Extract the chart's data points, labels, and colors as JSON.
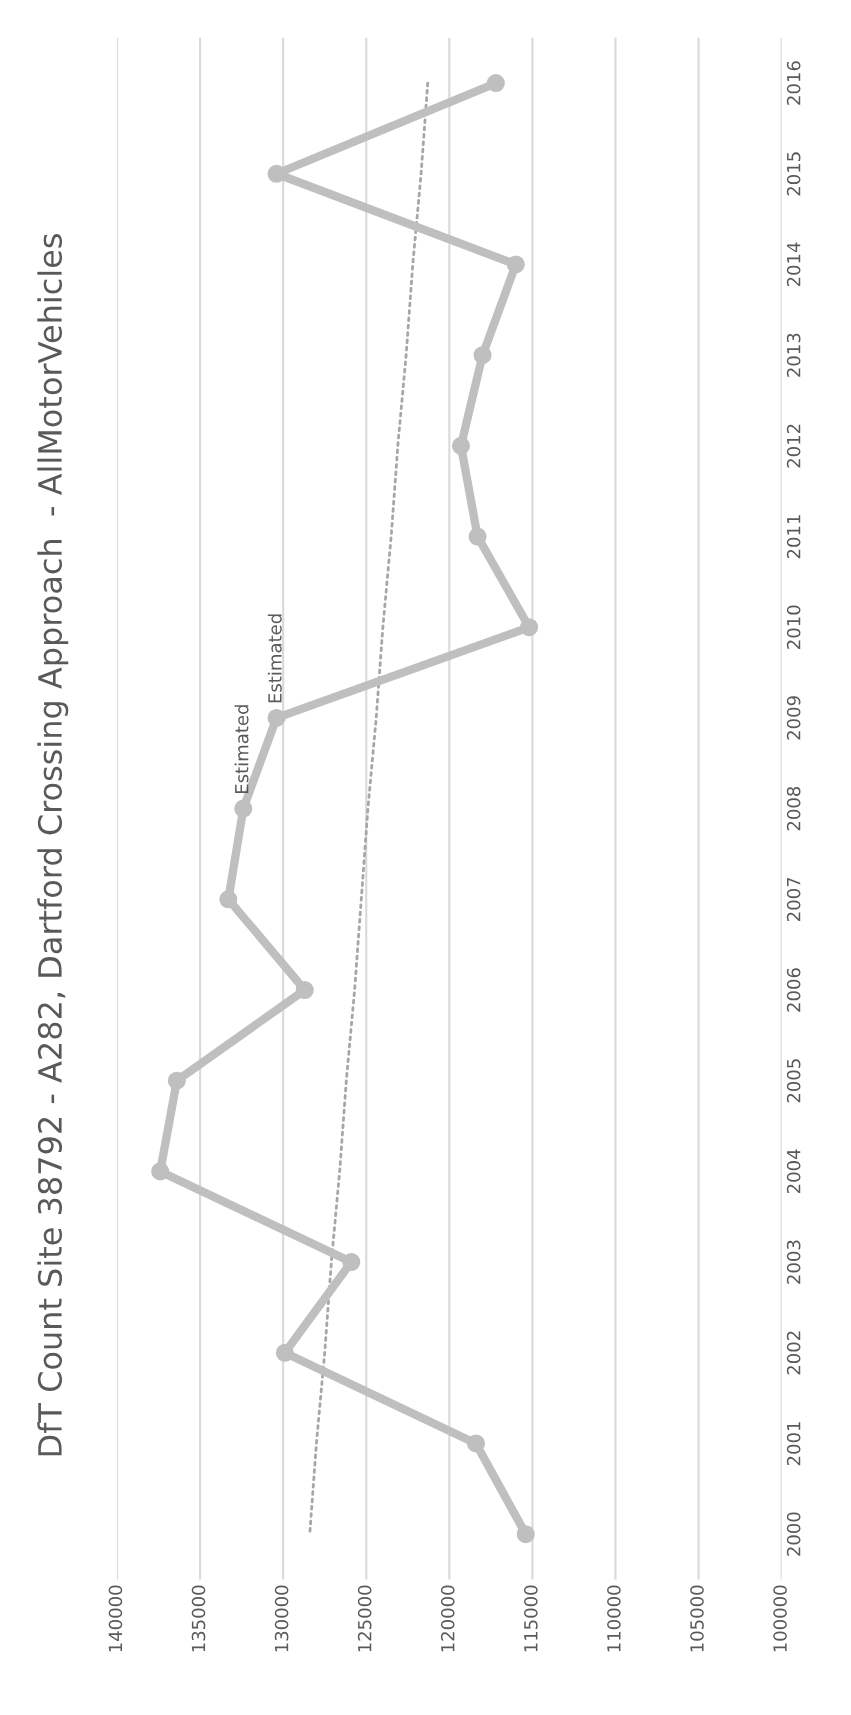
{
  "chart_data": {
    "type": "line",
    "orientation": "horizontal",
    "title": "DfT Count Site 38792 - A282, Dartford Crossing Approach  - AllMotorVehicles",
    "categories": [
      "2016",
      "2015",
      "2014",
      "2013",
      "2012",
      "2011",
      "2010",
      "2009",
      "2008",
      "2007",
      "2006",
      "2005",
      "2004",
      "2003",
      "2002",
      "2001",
      "2000"
    ],
    "series": [
      {
        "color": "#bfbfbf",
        "marker": "circle",
        "line_style": "solid",
        "values": [
          117200,
          130400,
          116000,
          118000,
          119300,
          118300,
          115200,
          130400,
          132400,
          133300,
          128700,
          136400,
          137400,
          125900,
          129900,
          118400,
          115400
        ]
      },
      {
        "color": "#a6a6a6",
        "marker": "none",
        "line_style": "dotted",
        "values": [
          121300,
          121700,
          122200,
          122600,
          123100,
          123500,
          124000,
          124400,
          124900,
          125300,
          125700,
          126200,
          126600,
          127100,
          127500,
          128000,
          128400
        ]
      }
    ],
    "xlim": [
      140000,
      100000
    ],
    "xticks": [
      140000,
      135000,
      130000,
      125000,
      120000,
      115000,
      110000,
      105000,
      100000
    ],
    "grid": "x",
    "legend": false,
    "annotations": [
      {
        "text": "Estimated",
        "x": 132400,
        "y": "2008"
      },
      {
        "text": "Estimated",
        "x": 130400,
        "y": "2009"
      }
    ]
  }
}
